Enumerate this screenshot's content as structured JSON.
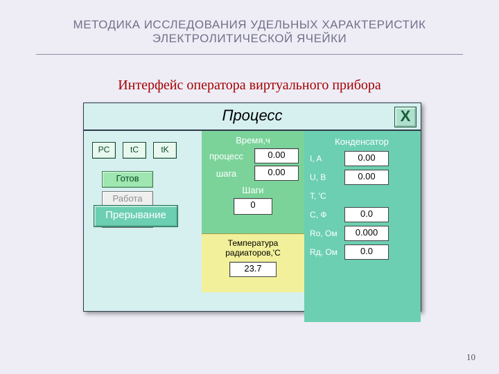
{
  "title_line1": "МЕТОДИКА ИССЛЕДОВАНИЯ УДЕЛЬНЫХ ХАРАКТЕРИСТИК",
  "title_line2": "ЭЛЕКТРОЛИТИЧЕСКОЙ ЯЧЕЙКИ",
  "subtitle": "Интерфейс оператора виртуального прибора",
  "page_number": "10",
  "panel": {
    "title": "Процесс",
    "close_label": "X",
    "mini": [
      "PC",
      "tC",
      "tK"
    ],
    "status": {
      "ready": "Готов",
      "run": "Работа",
      "pause": "Прерыв"
    },
    "interrupt": "Прерывание",
    "process_block": {
      "header": "Время,ч",
      "row_process_label": "процесс",
      "row_process_value": "0.00",
      "row_step_label": "шага",
      "row_step_value": "0.00",
      "steps_label": "Шаги",
      "steps_value": "0"
    },
    "temp_block": {
      "label_l1": "Температура",
      "label_l2": "радиаторов,'C",
      "value": "23.7"
    },
    "capacitor": {
      "header": "Конденсатор",
      "rows": [
        {
          "label": "I, A",
          "value": "0.00"
        },
        {
          "label": "U, В",
          "value": "0.00"
        },
        {
          "label": "T, 'C",
          "value": ""
        },
        {
          "label": "С, Ф",
          "value": "0.0"
        },
        {
          "label": "Ro, Ом",
          "value": "0.000"
        },
        {
          "label": "Rд, Ом",
          "value": "0.0"
        }
      ]
    }
  },
  "colors": {
    "slide_bg": "#eeedf6",
    "title_color": "#717088",
    "subtitle_color": "#a40000",
    "panel_bg": "#d6f0f0",
    "mid_green": "#7bd39a",
    "mid_yellow": "#f2f09a",
    "right_green": "#6ccfb1"
  }
}
